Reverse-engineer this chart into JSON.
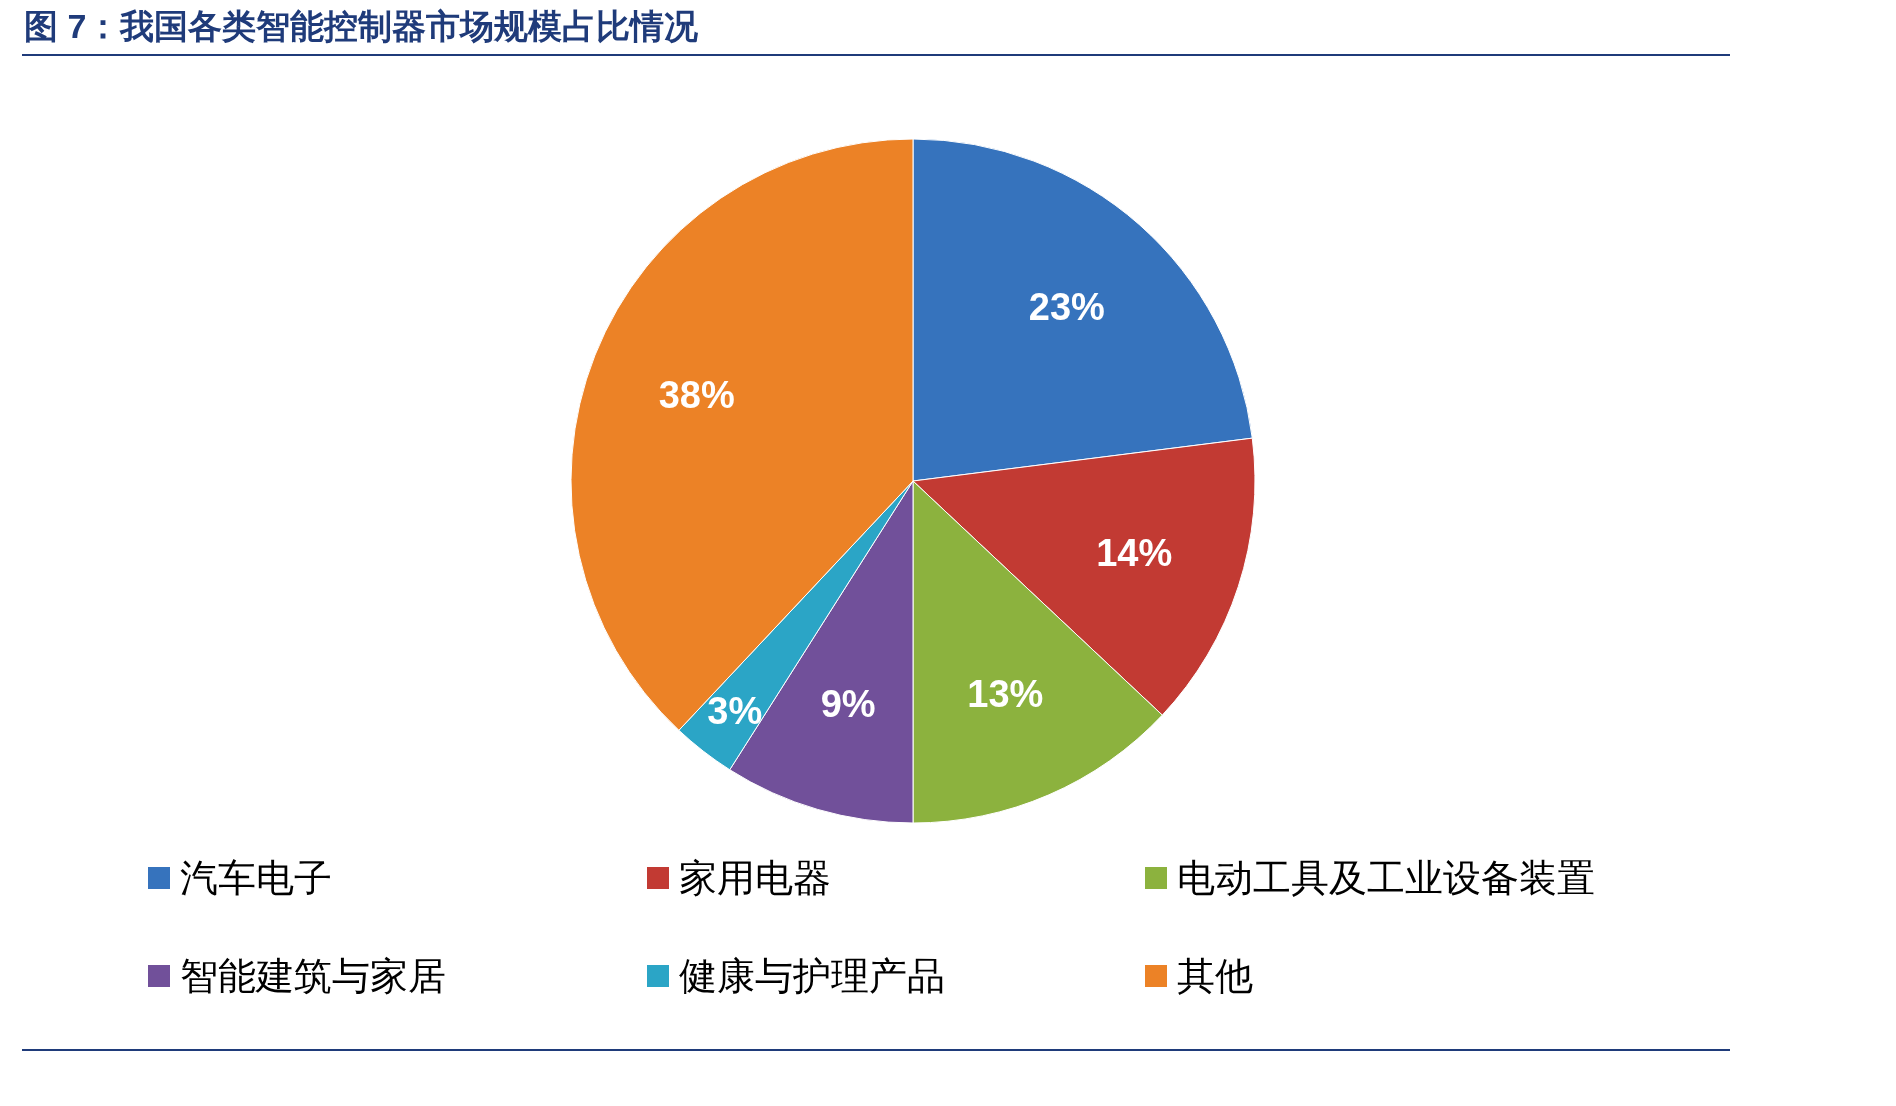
{
  "chart_data": {
    "type": "pie",
    "title": "图 7：我国各类智能控制器市场规模占比情况",
    "categories": [
      "汽车电子",
      "家用电器",
      "电动工具及工业设备装置",
      "智能建筑与家居",
      "健康与护理产品",
      "其他"
    ],
    "values": [
      23,
      14,
      13,
      9,
      3,
      38
    ],
    "colors": [
      "#3673bd",
      "#c23a33",
      "#8cb23e",
      "#71509a",
      "#2ba5c6",
      "#ec8226"
    ],
    "value_labels": [
      "23%",
      "14%",
      "13%",
      "9%",
      "3%",
      "38%"
    ],
    "legend": "bottom"
  }
}
